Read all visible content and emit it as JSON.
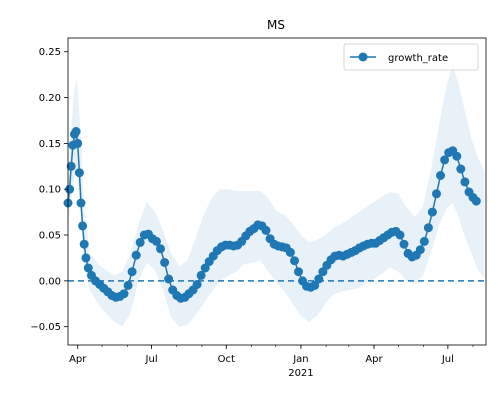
{
  "chart_data": {
    "type": "line",
    "title": "MS",
    "xlabel": "",
    "ylabel": "",
    "ylim": [
      -0.07,
      0.265
    ],
    "xlim": [
      "2020-03-20",
      "2021-08-17"
    ],
    "grid": false,
    "legend": {
      "position": "top-right",
      "entries": [
        "growth_rate"
      ]
    },
    "colors": {
      "series": "#1f77b4",
      "band": "#1f77b4",
      "zero_line": "#1f77b4"
    },
    "x_ticks": [
      {
        "date": "2020-04-01",
        "label": "Apr"
      },
      {
        "date": "2020-07-01",
        "label": "Jul"
      },
      {
        "date": "2020-10-01",
        "label": "Oct"
      },
      {
        "date": "2021-01-01",
        "label": "Jan"
      },
      {
        "date": "2021-04-01",
        "label": "Apr"
      },
      {
        "date": "2021-07-01",
        "label": "Jul"
      }
    ],
    "x_secondary_label": {
      "date": "2021-01-01",
      "label": "2021"
    },
    "y_ticks": [
      -0.05,
      0.0,
      0.05,
      0.1,
      0.15,
      0.2,
      0.25
    ],
    "y_tick_labels": [
      "−0.05",
      "0.00",
      "0.05",
      "0.10",
      "0.15",
      "0.20",
      "0.25"
    ],
    "reference_line": {
      "y": 0.0,
      "style": "dashed"
    },
    "series": [
      {
        "name": "growth_rate",
        "marker": "circle",
        "points": [
          [
            "2020-03-20",
            0.085
          ],
          [
            "2020-03-22",
            0.1
          ],
          [
            "2020-03-24",
            0.125
          ],
          [
            "2020-03-26",
            0.148
          ],
          [
            "2020-03-28",
            0.16
          ],
          [
            "2020-03-30",
            0.163
          ],
          [
            "2020-04-01",
            0.15
          ],
          [
            "2020-04-03",
            0.118
          ],
          [
            "2020-04-05",
            0.085
          ],
          [
            "2020-04-07",
            0.06
          ],
          [
            "2020-04-09",
            0.04
          ],
          [
            "2020-04-11",
            0.025
          ],
          [
            "2020-04-14",
            0.014
          ],
          [
            "2020-04-18",
            0.006
          ],
          [
            "2020-04-23",
            0.0
          ],
          [
            "2020-04-28",
            -0.004
          ],
          [
            "2020-05-03",
            -0.008
          ],
          [
            "2020-05-08",
            -0.012
          ],
          [
            "2020-05-13",
            -0.016
          ],
          [
            "2020-05-18",
            -0.018
          ],
          [
            "2020-05-23",
            -0.017
          ],
          [
            "2020-05-28",
            -0.014
          ],
          [
            "2020-06-02",
            -0.005
          ],
          [
            "2020-06-07",
            0.01
          ],
          [
            "2020-06-12",
            0.028
          ],
          [
            "2020-06-17",
            0.042
          ],
          [
            "2020-06-22",
            0.05
          ],
          [
            "2020-06-27",
            0.051
          ],
          [
            "2020-07-02",
            0.046
          ],
          [
            "2020-07-07",
            0.043
          ],
          [
            "2020-07-12",
            0.035
          ],
          [
            "2020-07-17",
            0.02
          ],
          [
            "2020-07-22",
            0.002
          ],
          [
            "2020-07-27",
            -0.01
          ],
          [
            "2020-08-01",
            -0.016
          ],
          [
            "2020-08-06",
            -0.019
          ],
          [
            "2020-08-11",
            -0.018
          ],
          [
            "2020-08-16",
            -0.014
          ],
          [
            "2020-08-21",
            -0.01
          ],
          [
            "2020-08-26",
            -0.004
          ],
          [
            "2020-08-31",
            0.006
          ],
          [
            "2020-09-05",
            0.014
          ],
          [
            "2020-09-10",
            0.021
          ],
          [
            "2020-09-15",
            0.027
          ],
          [
            "2020-09-20",
            0.033
          ],
          [
            "2020-09-25",
            0.037
          ],
          [
            "2020-09-30",
            0.039
          ],
          [
            "2020-10-05",
            0.039
          ],
          [
            "2020-10-10",
            0.038
          ],
          [
            "2020-10-15",
            0.039
          ],
          [
            "2020-10-20",
            0.043
          ],
          [
            "2020-10-25",
            0.049
          ],
          [
            "2020-10-30",
            0.054
          ],
          [
            "2020-11-04",
            0.057
          ],
          [
            "2020-11-09",
            0.061
          ],
          [
            "2020-11-14",
            0.06
          ],
          [
            "2020-11-19",
            0.055
          ],
          [
            "2020-11-24",
            0.046
          ],
          [
            "2020-11-29",
            0.04
          ],
          [
            "2020-12-04",
            0.038
          ],
          [
            "2020-12-09",
            0.037
          ],
          [
            "2020-12-14",
            0.036
          ],
          [
            "2020-12-19",
            0.031
          ],
          [
            "2020-12-24",
            0.022
          ],
          [
            "2020-12-29",
            0.01
          ],
          [
            "2021-01-03",
            0.0
          ],
          [
            "2021-01-08",
            -0.006
          ],
          [
            "2021-01-13",
            -0.007
          ],
          [
            "2021-01-18",
            -0.005
          ],
          [
            "2021-01-23",
            0.002
          ],
          [
            "2021-01-28",
            0.01
          ],
          [
            "2021-02-02",
            0.017
          ],
          [
            "2021-02-07",
            0.023
          ],
          [
            "2021-02-12",
            0.027
          ],
          [
            "2021-02-17",
            0.028
          ],
          [
            "2021-02-22",
            0.027
          ],
          [
            "2021-02-27",
            0.029
          ],
          [
            "2021-03-04",
            0.031
          ],
          [
            "2021-03-09",
            0.033
          ],
          [
            "2021-03-14",
            0.036
          ],
          [
            "2021-03-19",
            0.038
          ],
          [
            "2021-03-24",
            0.04
          ],
          [
            "2021-03-29",
            0.041
          ],
          [
            "2021-04-03",
            0.041
          ],
          [
            "2021-04-08",
            0.044
          ],
          [
            "2021-04-13",
            0.047
          ],
          [
            "2021-04-18",
            0.05
          ],
          [
            "2021-04-23",
            0.053
          ],
          [
            "2021-04-28",
            0.054
          ],
          [
            "2021-05-03",
            0.05
          ],
          [
            "2021-05-08",
            0.04
          ],
          [
            "2021-05-13",
            0.03
          ],
          [
            "2021-05-18",
            0.026
          ],
          [
            "2021-05-23",
            0.028
          ],
          [
            "2021-05-28",
            0.034
          ],
          [
            "2021-06-02",
            0.043
          ],
          [
            "2021-06-07",
            0.058
          ],
          [
            "2021-06-12",
            0.075
          ],
          [
            "2021-06-17",
            0.095
          ],
          [
            "2021-06-22",
            0.115
          ],
          [
            "2021-06-27",
            0.132
          ],
          [
            "2021-07-02",
            0.14
          ],
          [
            "2021-07-07",
            0.142
          ],
          [
            "2021-07-12",
            0.136
          ],
          [
            "2021-07-17",
            0.122
          ],
          [
            "2021-07-22",
            0.108
          ],
          [
            "2021-07-27",
            0.097
          ],
          [
            "2021-08-01",
            0.091
          ],
          [
            "2021-08-05",
            0.087
          ]
        ],
        "band": [
          [
            "2020-03-20",
            0.06,
            0.11
          ],
          [
            "2020-03-27",
            0.11,
            0.205
          ],
          [
            "2020-03-31",
            0.12,
            0.22
          ],
          [
            "2020-04-04",
            0.08,
            0.17
          ],
          [
            "2020-04-09",
            0.015,
            0.08
          ],
          [
            "2020-04-16",
            -0.01,
            0.03
          ],
          [
            "2020-04-26",
            -0.025,
            0.018
          ],
          [
            "2020-05-06",
            -0.035,
            0.012
          ],
          [
            "2020-05-16",
            -0.045,
            0.006
          ],
          [
            "2020-05-26",
            -0.05,
            0.01
          ],
          [
            "2020-06-05",
            -0.035,
            0.03
          ],
          [
            "2020-06-15",
            0.0,
            0.062
          ],
          [
            "2020-06-25",
            0.02,
            0.086
          ],
          [
            "2020-07-05",
            0.012,
            0.076
          ],
          [
            "2020-07-15",
            -0.01,
            0.055
          ],
          [
            "2020-07-25",
            -0.04,
            0.03
          ],
          [
            "2020-08-04",
            -0.05,
            0.016
          ],
          [
            "2020-08-14",
            -0.048,
            0.022
          ],
          [
            "2020-08-24",
            -0.038,
            0.046
          ],
          [
            "2020-09-03",
            -0.025,
            0.072
          ],
          [
            "2020-09-13",
            -0.012,
            0.09
          ],
          [
            "2020-09-23",
            0.0,
            0.1
          ],
          [
            "2020-10-03",
            0.005,
            0.1
          ],
          [
            "2020-10-13",
            0.01,
            0.098
          ],
          [
            "2020-10-23",
            0.018,
            0.098
          ],
          [
            "2020-11-02",
            0.02,
            0.098
          ],
          [
            "2020-11-12",
            0.022,
            0.098
          ],
          [
            "2020-11-22",
            0.01,
            0.09
          ],
          [
            "2020-12-02",
            -0.002,
            0.076
          ],
          [
            "2020-12-12",
            -0.012,
            0.072
          ],
          [
            "2020-12-22",
            -0.025,
            0.062
          ],
          [
            "2021-01-01",
            -0.038,
            0.05
          ],
          [
            "2021-01-11",
            -0.045,
            0.042
          ],
          [
            "2021-01-21",
            -0.038,
            0.045
          ],
          [
            "2021-01-31",
            -0.025,
            0.05
          ],
          [
            "2021-02-10",
            -0.015,
            0.058
          ],
          [
            "2021-02-20",
            -0.012,
            0.062
          ],
          [
            "2021-03-02",
            -0.01,
            0.068
          ],
          [
            "2021-03-12",
            -0.008,
            0.074
          ],
          [
            "2021-03-22",
            -0.003,
            0.08
          ],
          [
            "2021-04-01",
            0.002,
            0.086
          ],
          [
            "2021-04-11",
            0.008,
            0.092
          ],
          [
            "2021-04-21",
            0.015,
            0.097
          ],
          [
            "2021-05-01",
            0.01,
            0.095
          ],
          [
            "2021-05-11",
            0.0,
            0.08
          ],
          [
            "2021-05-21",
            -0.002,
            0.07
          ],
          [
            "2021-05-31",
            0.005,
            0.08
          ],
          [
            "2021-06-10",
            0.03,
            0.12
          ],
          [
            "2021-06-20",
            0.06,
            0.17
          ],
          [
            "2021-06-30",
            0.08,
            0.215
          ],
          [
            "2021-07-07",
            0.085,
            0.235
          ],
          [
            "2021-07-14",
            0.07,
            0.215
          ],
          [
            "2021-07-22",
            0.048,
            0.185
          ],
          [
            "2021-07-30",
            0.03,
            0.155
          ],
          [
            "2021-08-07",
            0.012,
            0.135
          ],
          [
            "2021-08-15",
            0.003,
            0.12
          ]
        ]
      }
    ]
  }
}
